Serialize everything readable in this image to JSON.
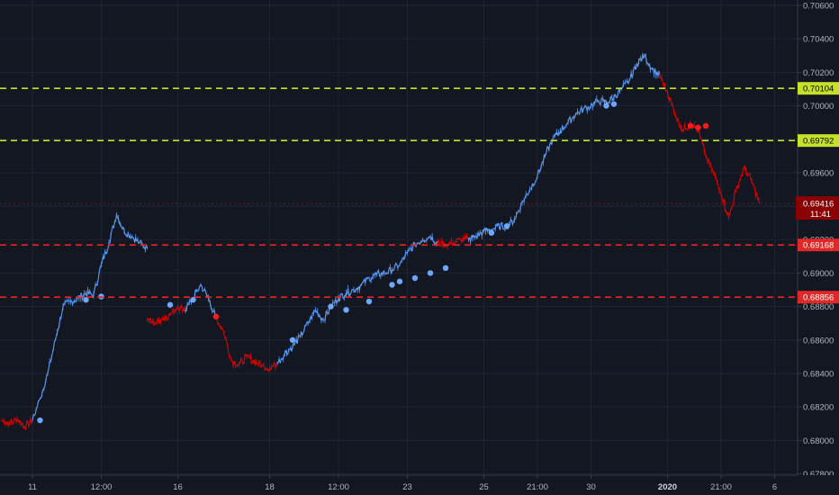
{
  "chart_data": {
    "type": "line",
    "y_axis": {
      "ylim": [
        0.67792,
        0.70632
      ],
      "ticks": [
        "0.67800",
        "0.68000",
        "0.68200",
        "0.68400",
        "0.68600",
        "0.68800",
        "0.69000",
        "0.69200",
        "0.69400",
        "0.69600",
        "0.69800",
        "0.70000",
        "0.70200",
        "0.70400",
        "0.70600"
      ],
      "tick_values": [
        0.678,
        0.68,
        0.682,
        0.684,
        0.686,
        0.688,
        0.69,
        0.692,
        0.694,
        0.696,
        0.698,
        0.7,
        0.702,
        0.704,
        0.706
      ]
    },
    "x_axis": {
      "index_range": [
        0,
        100
      ],
      "ticks": [
        {
          "label": "11",
          "idx": 4,
          "bold": false
        },
        {
          "label": "12:00",
          "idx": 13,
          "bold": false
        },
        {
          "label": "16",
          "idx": 23,
          "bold": false
        },
        {
          "label": "18",
          "idx": 35,
          "bold": false
        },
        {
          "label": "12:00",
          "idx": 44,
          "bold": false
        },
        {
          "label": "23",
          "idx": 53,
          "bold": false
        },
        {
          "label": "25",
          "idx": 63,
          "bold": false
        },
        {
          "label": "21:00",
          "idx": 70,
          "bold": false
        },
        {
          "label": "30",
          "idx": 77,
          "bold": false
        },
        {
          "label": "2020",
          "idx": 87,
          "bold": true
        },
        {
          "label": "21:00",
          "idx": 94,
          "bold": false
        },
        {
          "label": "6",
          "idx": 101,
          "bold": false
        }
      ]
    },
    "series": [
      {
        "color": "#d90000",
        "values": [
          [
            0,
            0.6812
          ],
          [
            1,
            0.681
          ],
          [
            2,
            0.6813
          ],
          [
            3,
            0.6808
          ],
          [
            4,
            0.6812
          ]
        ]
      },
      {
        "color": "#5b9cf6",
        "values": [
          [
            4,
            0.6812
          ],
          [
            5,
            0.6825
          ],
          [
            6,
            0.684
          ],
          [
            7,
            0.686
          ],
          [
            8,
            0.688
          ],
          [
            9,
            0.6883
          ],
          [
            10,
            0.6885
          ],
          [
            11,
            0.6888
          ],
          [
            12,
            0.6887
          ],
          [
            13,
            0.6905
          ],
          [
            14,
            0.6918
          ],
          [
            15,
            0.6935
          ],
          [
            16,
            0.6925
          ],
          [
            17,
            0.6922
          ],
          [
            18,
            0.6918
          ],
          [
            19,
            0.6915
          ]
        ]
      },
      {
        "color": "#d90000",
        "values": [
          [
            19,
            0.6872
          ],
          [
            20,
            0.687
          ],
          [
            21,
            0.6873
          ],
          [
            22,
            0.6875
          ],
          [
            23,
            0.688
          ],
          [
            24,
            0.6878
          ]
        ]
      },
      {
        "color": "#5b9cf6",
        "values": [
          [
            24,
            0.6878
          ],
          [
            25,
            0.6885
          ],
          [
            26,
            0.6893
          ],
          [
            27,
            0.6885
          ],
          [
            28,
            0.6873
          ]
        ]
      },
      {
        "color": "#d90000",
        "values": [
          [
            28,
            0.6873
          ],
          [
            29,
            0.6865
          ],
          [
            30,
            0.6848
          ],
          [
            31,
            0.6845
          ],
          [
            32,
            0.685
          ],
          [
            33,
            0.6847
          ],
          [
            34,
            0.6845
          ],
          [
            35,
            0.6843
          ],
          [
            36,
            0.6846
          ]
        ]
      },
      {
        "color": "#5b9cf6",
        "values": [
          [
            36,
            0.6846
          ],
          [
            37,
            0.6852
          ],
          [
            38,
            0.6856
          ],
          [
            39,
            0.6862
          ],
          [
            40,
            0.687
          ],
          [
            41,
            0.6878
          ],
          [
            42,
            0.6872
          ],
          [
            43,
            0.688
          ],
          [
            44,
            0.6885
          ],
          [
            45,
            0.6888
          ],
          [
            46,
            0.689
          ],
          [
            47,
            0.6893
          ],
          [
            48,
            0.6897
          ],
          [
            49,
            0.6899
          ],
          [
            50,
            0.69
          ],
          [
            51,
            0.6902
          ],
          [
            52,
            0.6905
          ],
          [
            53,
            0.6912
          ],
          [
            54,
            0.6917
          ],
          [
            55,
            0.692
          ],
          [
            56,
            0.6922
          ],
          [
            57,
            0.6918
          ]
        ]
      },
      {
        "color": "#d90000",
        "values": [
          [
            57,
            0.6918
          ],
          [
            58,
            0.6917
          ],
          [
            59,
            0.6918
          ],
          [
            60,
            0.692
          ],
          [
            61,
            0.692
          ]
        ]
      },
      {
        "color": "#5b9cf6",
        "values": [
          [
            61,
            0.692
          ],
          [
            62,
            0.6922
          ],
          [
            63,
            0.6925
          ],
          [
            64,
            0.6926
          ],
          [
            65,
            0.6928
          ],
          [
            66,
            0.6928
          ],
          [
            67,
            0.6932
          ],
          [
            68,
            0.6942
          ],
          [
            69,
            0.695
          ],
          [
            70,
            0.6958
          ],
          [
            71,
            0.697
          ],
          [
            72,
            0.698
          ],
          [
            73,
            0.6985
          ],
          [
            74,
            0.699
          ],
          [
            75,
            0.6995
          ],
          [
            76,
            0.6998
          ],
          [
            77,
            0.7
          ],
          [
            78,
            0.7003
          ],
          [
            79,
            0.7002
          ],
          [
            80,
            0.7005
          ],
          [
            81,
            0.701
          ],
          [
            82,
            0.7015
          ],
          [
            83,
            0.7025
          ],
          [
            84,
            0.703
          ],
          [
            85,
            0.7022
          ],
          [
            86,
            0.7018
          ]
        ]
      },
      {
        "color": "#d90000",
        "values": [
          [
            86,
            0.7018
          ],
          [
            87,
            0.7008
          ],
          [
            88,
            0.6995
          ],
          [
            89,
            0.6985
          ],
          [
            90,
            0.699
          ],
          [
            91,
            0.6985
          ],
          [
            92,
            0.697
          ],
          [
            93,
            0.696
          ],
          [
            94,
            0.6948
          ],
          [
            95,
            0.6933
          ],
          [
            96,
            0.695
          ],
          [
            97,
            0.6963
          ],
          [
            98,
            0.6955
          ],
          [
            99,
            0.6942
          ]
        ]
      }
    ],
    "markers": {
      "blue": [
        [
          5,
          0.6812
        ],
        [
          11,
          0.6884
        ],
        [
          13,
          0.6886
        ],
        [
          22,
          0.6881
        ],
        [
          25,
          0.6884
        ],
        [
          38,
          0.686
        ],
        [
          43,
          0.688
        ],
        [
          45,
          0.6878
        ],
        [
          48,
          0.6883
        ],
        [
          51,
          0.6893
        ],
        [
          52,
          0.6895
        ],
        [
          54,
          0.6897
        ],
        [
          56,
          0.69
        ],
        [
          58,
          0.6903
        ],
        [
          64,
          0.6924
        ],
        [
          66,
          0.6928
        ],
        [
          79,
          0.7
        ],
        [
          80,
          0.7001
        ]
      ],
      "red": [
        [
          28,
          0.6874
        ],
        [
          90,
          0.6988
        ],
        [
          91,
          0.6987
        ],
        [
          92,
          0.6988
        ]
      ]
    },
    "horizontal_levels": [
      {
        "value": 0.70104,
        "label": "0.70104",
        "color": "#c6e12a",
        "text_color": "#000000"
      },
      {
        "value": 0.69792,
        "label": "0.69792",
        "color": "#c6e12a",
        "text_color": "#000000"
      },
      {
        "value": 0.69168,
        "label": "0.69168",
        "color": "#e02828",
        "text_color": "#ffffff"
      },
      {
        "value": 0.68856,
        "label": "0.68856",
        "color": "#e02828",
        "text_color": "#ffffff"
      }
    ],
    "last_price": {
      "value": 0.69416,
      "label": "0.69416",
      "countdown": "11:41",
      "color": "#8b0000"
    },
    "background": "#131722",
    "grid": true
  }
}
